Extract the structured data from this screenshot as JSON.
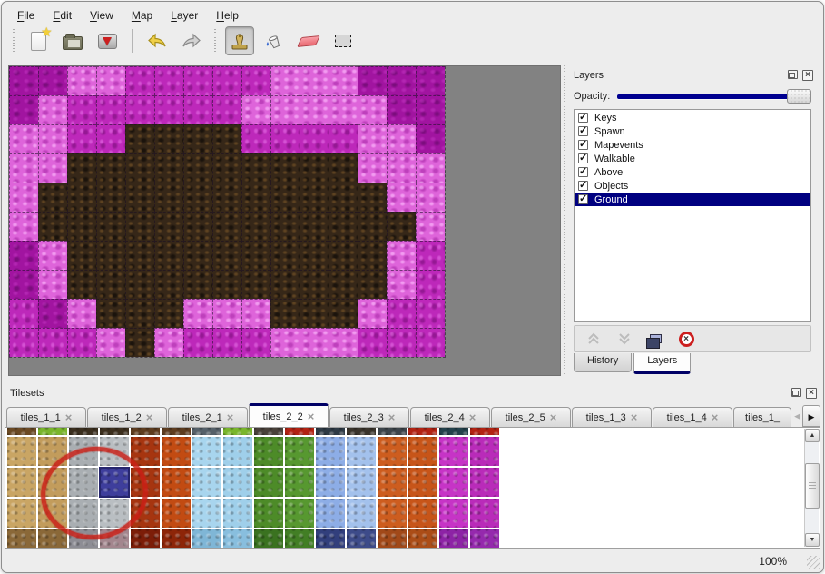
{
  "menu_bar": {
    "items": [
      {
        "label": "File"
      },
      {
        "label": "Edit"
      },
      {
        "label": "View"
      },
      {
        "label": "Map"
      },
      {
        "label": "Layer"
      },
      {
        "label": "Help"
      }
    ]
  },
  "toolbar": {
    "groups": [
      {
        "tools": [
          "new-file",
          "open",
          "save"
        ]
      },
      {
        "tools": [
          "undo",
          "redo"
        ]
      },
      {
        "tools": [
          "stamp",
          "fill",
          "eraser",
          "rect-select"
        ]
      }
    ],
    "active_tool": "stamp"
  },
  "map_view": {
    "columns": 15,
    "rows": 10,
    "tile_size": 32,
    "canvas_background": "#828282",
    "palette": {
      "D": "#a114a0",
      "C": "#bd28ba",
      "P": "#de64da",
      "B": "#362718"
    },
    "grid": [
      "DDPPCCCCCPPPDDD",
      "DPCCCCCCPPPPPDD",
      "PPCCBBBBCCCCPPD",
      "PPBBBBBBBBBBPPP",
      "PBBBBBBBBBBBBPP",
      "PBBBBBBBBBBBBBP",
      "DPBBBBBBBBBBBPC",
      "DPBBBBBBBBBBBPC",
      "CDPBBBPPPBBBPCC",
      "CCCPBPCCCPPPCCC"
    ]
  },
  "layers_panel": {
    "title": "Layers",
    "opacity_label": "Opacity:",
    "opacity_percent": 100,
    "layers": [
      {
        "name": "Keys",
        "visible": true,
        "selected": false
      },
      {
        "name": "Spawn",
        "visible": true,
        "selected": false
      },
      {
        "name": "Mapevents",
        "visible": true,
        "selected": false
      },
      {
        "name": "Walkable",
        "visible": true,
        "selected": false
      },
      {
        "name": "Above",
        "visible": true,
        "selected": false
      },
      {
        "name": "Objects",
        "visible": true,
        "selected": false
      },
      {
        "name": "Ground",
        "visible": true,
        "selected": true
      }
    ],
    "selected_layer": "Ground",
    "actions": [
      {
        "name": "move-layer-up",
        "enabled": false
      },
      {
        "name": "move-layer-down",
        "enabled": false
      },
      {
        "name": "duplicate-layer",
        "enabled": true
      },
      {
        "name": "delete-layer",
        "enabled": true
      }
    ],
    "bottom_tabs": [
      {
        "label": "History",
        "active": false
      },
      {
        "label": "Layers",
        "active": true
      }
    ]
  },
  "tilesets_panel": {
    "title": "Tilesets",
    "tabs": [
      {
        "label": "tiles_1_1",
        "active": false,
        "truncated": false
      },
      {
        "label": "tiles_1_2",
        "active": false,
        "truncated": false
      },
      {
        "label": "tiles_2_1",
        "active": false,
        "truncated": false
      },
      {
        "label": "tiles_2_2",
        "active": true,
        "truncated": false
      },
      {
        "label": "tiles_2_3",
        "active": false,
        "truncated": false
      },
      {
        "label": "tiles_2_4",
        "active": false,
        "truncated": false
      },
      {
        "label": "tiles_2_5",
        "active": false,
        "truncated": false
      },
      {
        "label": "tiles_1_3",
        "active": false,
        "truncated": false
      },
      {
        "label": "tiles_1_4",
        "active": false,
        "truncated": false
      },
      {
        "label": "tiles_1_",
        "active": false,
        "truncated": true
      }
    ],
    "tile_columns": [
      {
        "strip": "#6b4a24",
        "main": "#c9a564",
        "bottom": "#8a6838"
      },
      {
        "strip": "#79b52c",
        "main": "#c29c5c",
        "bottom": "#8a6838"
      },
      {
        "strip": "#3a2e1e",
        "main": "#a9aeb2",
        "bottom": "#8d8d94"
      },
      {
        "strip": "#3c2f1e",
        "main": "#b9bec2",
        "bottom": "#a3868e"
      },
      {
        "strip": "#5d3c1f",
        "main": "#a63510",
        "bottom": "#7c1d08"
      },
      {
        "strip": "#5d3c1f",
        "main": "#c24b12",
        "bottom": "#8d2508"
      },
      {
        "strip": "#556069",
        "main": "#a8d5ee",
        "bottom": "#7fb6d6"
      },
      {
        "strip": "#79b52c",
        "main": "#9fcfea",
        "bottom": "#88bede"
      },
      {
        "strip": "#49413a",
        "main": "#4d8b28",
        "bottom": "#3a7220"
      },
      {
        "strip": "#b22313",
        "main": "#579830",
        "bottom": "#427e25"
      },
      {
        "strip": "#2e3a45",
        "main": "#8dade6",
        "bottom": "#323f7c"
      },
      {
        "strip": "#3a342b",
        "main": "#a3c1ec",
        "bottom": "#3d4b89"
      },
      {
        "strip": "#3d454b",
        "main": "#cd5d1f",
        "bottom": "#a14919"
      },
      {
        "strip": "#b22313",
        "main": "#c75519",
        "bottom": "#ab4d17"
      },
      {
        "strip": "#23414b",
        "main": "#c634c6",
        "bottom": "#8d23a5"
      },
      {
        "strip": "#b22313",
        "main": "#b92bb9",
        "bottom": "#9529ad"
      }
    ],
    "selected_tile": {
      "column": 3,
      "row": 1,
      "highlight_color": "#3e3e9c"
    },
    "annotation": {
      "type": "red-circle"
    }
  },
  "status_bar": {
    "zoom_level": "100%"
  }
}
